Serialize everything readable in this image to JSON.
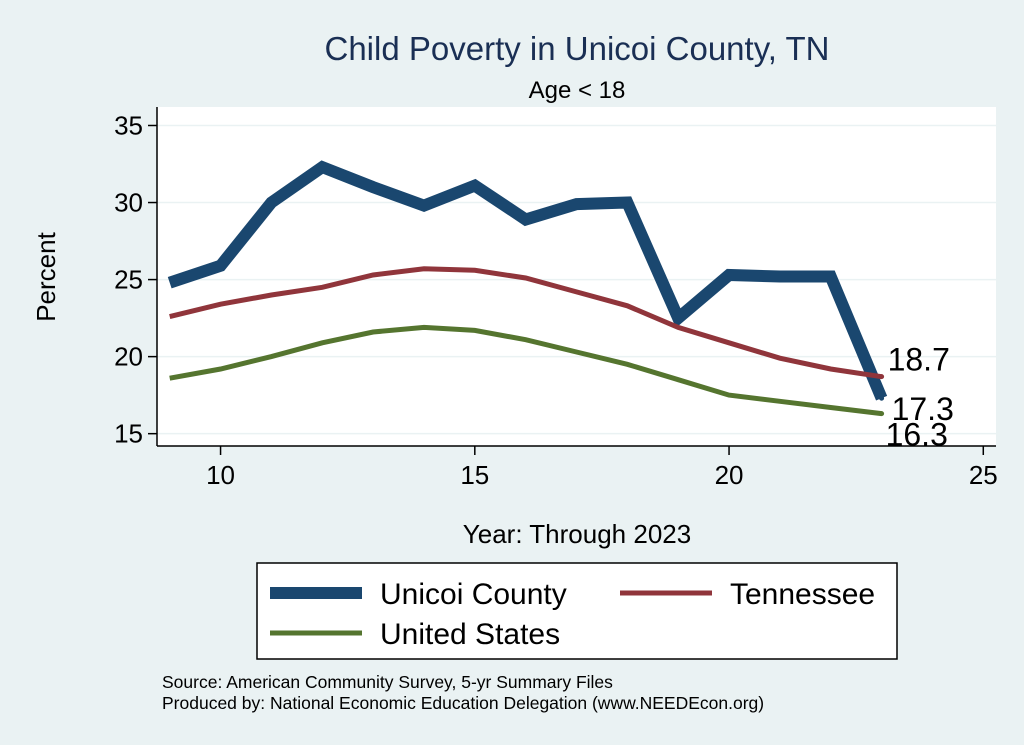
{
  "chart_data": {
    "type": "line",
    "title": "Child Poverty in Unicoi County, TN",
    "subtitle": "Age < 18",
    "xlabel": "Year: Through 2023",
    "ylabel": "Percent",
    "xlim": [
      8.75,
      25.25
    ],
    "ylim": [
      14.2,
      36.2
    ],
    "xticks": [
      10,
      15,
      20,
      25
    ],
    "yticks": [
      15,
      20,
      25,
      30,
      35
    ],
    "grid": true,
    "legend_position": "bottom",
    "x": [
      9,
      10,
      11,
      12,
      13,
      14,
      15,
      16,
      17,
      18,
      19,
      20,
      21,
      22,
      23
    ],
    "series": [
      {
        "name": "Unicoi County",
        "color": "#1a476f",
        "values": [
          24.8,
          25.9,
          30.0,
          32.3,
          31.0,
          29.8,
          31.1,
          28.9,
          29.9,
          30.0,
          22.5,
          25.3,
          25.2,
          25.2,
          17.3
        ],
        "end_label": "17.3"
      },
      {
        "name": "Tennessee",
        "color": "#90353b",
        "values": [
          22.6,
          23.4,
          24.0,
          24.5,
          25.3,
          25.7,
          25.6,
          25.1,
          24.2,
          23.3,
          21.9,
          20.9,
          19.9,
          19.2,
          18.7
        ],
        "end_label": "18.7"
      },
      {
        "name": "United States",
        "color": "#55752f",
        "values": [
          18.6,
          19.2,
          20.0,
          20.9,
          21.6,
          21.9,
          21.7,
          21.1,
          20.3,
          19.5,
          18.5,
          17.5,
          17.1,
          16.7,
          16.3
        ],
        "end_label": "16.3"
      }
    ],
    "source_lines": [
      "Source: American Community Survey, 5-yr Summary Files",
      "Produced by: National Economic Education Delegation (www.NEEDEcon.org)"
    ]
  }
}
